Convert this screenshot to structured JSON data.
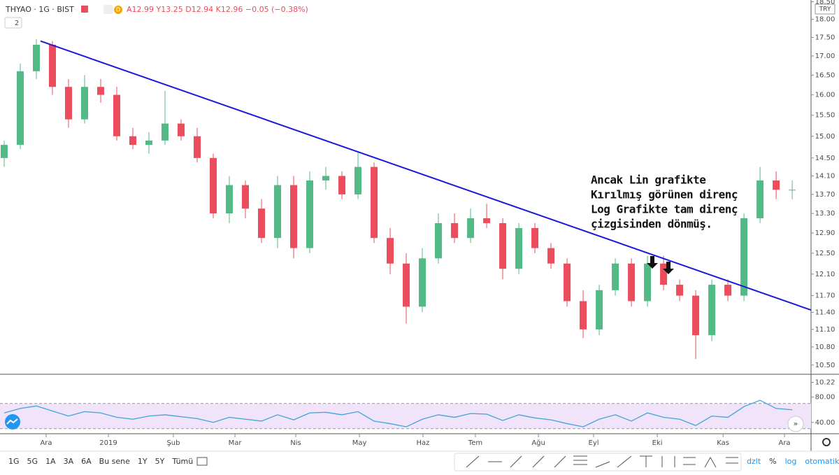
{
  "header": {
    "symbol": "THYAO · 1G · BIST",
    "badge": "D",
    "ohlc": "A12.99 Y13.25 D12.94 K12.96 −0.05 (−0.38%)",
    "indicator_count": "2",
    "currency": "TRY"
  },
  "chart_data": [
    {
      "type": "candlestick",
      "log_scale": true,
      "up_color": "#53b987",
      "down_color": "#eb4d5c",
      "xlim": [
        -0.26,
        50.17
      ],
      "xticks": [
        {
          "value": 2.61,
          "label": "Ara"
        },
        {
          "value": 6.48,
          "label": "2019"
        },
        {
          "value": 10.52,
          "label": "Şub"
        },
        {
          "value": 14.35,
          "label": "Mar"
        },
        {
          "value": 18.13,
          "label": "Nis"
        },
        {
          "value": 22.09,
          "label": "May"
        },
        {
          "value": 26.04,
          "label": "Haz"
        },
        {
          "value": 29.3,
          "label": "Tem"
        },
        {
          "value": 33.22,
          "label": "Ağu"
        },
        {
          "value": 36.65,
          "label": "Eyl"
        },
        {
          "value": 40.61,
          "label": "Eki"
        },
        {
          "value": 44.7,
          "label": "Kas"
        },
        {
          "value": 48.52,
          "label": "Ara"
        }
      ],
      "ylim": [
        10.35,
        18.55
      ],
      "yticks": [
        {
          "value": 18.5,
          "label": "18.50"
        },
        {
          "value": 18,
          "label": "18.00"
        },
        {
          "value": 17.5,
          "label": "17.50"
        },
        {
          "value": 17,
          "label": "17.00"
        },
        {
          "value": 16.5,
          "label": "16.50"
        },
        {
          "value": 16,
          "label": "16.00"
        },
        {
          "value": 15.5,
          "label": "15.50"
        },
        {
          "value": 15,
          "label": "15.00"
        },
        {
          "value": 14.5,
          "label": "14.50"
        },
        {
          "value": 14.1,
          "label": "14.10"
        },
        {
          "value": 13.7,
          "label": "13.70"
        },
        {
          "value": 13.3,
          "label": "13.30"
        },
        {
          "value": 12.9,
          "label": "12.90"
        },
        {
          "value": 12.5,
          "label": "12.50"
        },
        {
          "value": 12.1,
          "label": "12.10"
        },
        {
          "value": 11.7,
          "label": "11.70"
        },
        {
          "value": 11.4,
          "label": "11.40"
        },
        {
          "value": 11.1,
          "label": "11.10"
        },
        {
          "value": 10.8,
          "label": "10.80"
        },
        {
          "value": 10.5,
          "label": "10.50"
        },
        {
          "value": 10.22,
          "label": "10.22"
        }
      ],
      "open": [
        14.5,
        14.8,
        16.6,
        17.3,
        16.2,
        15.4,
        16.2,
        16.0,
        15.0,
        14.8,
        14.9,
        15.3,
        15.0,
        14.5,
        13.3,
        13.9,
        13.4,
        12.8,
        13.9,
        12.6,
        14.0,
        14.1,
        13.7,
        14.3,
        12.8,
        12.3,
        11.5,
        12.4,
        13.1,
        12.8,
        13.2,
        13.1,
        12.2,
        13.0,
        12.6,
        12.3,
        11.6,
        11.1,
        11.8,
        12.3,
        11.6,
        12.3,
        11.9,
        11.7,
        11.0,
        11.9,
        11.7,
        13.2,
        14.0,
        13.8
      ],
      "high": [
        14.9,
        16.8,
        17.45,
        17.4,
        16.4,
        16.5,
        16.4,
        16.2,
        15.2,
        15.1,
        16.1,
        15.4,
        15.2,
        14.6,
        14.1,
        14.0,
        13.6,
        14.1,
        14.1,
        14.2,
        14.3,
        14.2,
        14.65,
        14.4,
        13.0,
        12.5,
        12.6,
        13.3,
        13.3,
        13.4,
        13.5,
        13.2,
        13.1,
        13.1,
        12.7,
        12.4,
        11.8,
        11.9,
        12.4,
        12.4,
        12.45,
        12.45,
        12.0,
        11.8,
        12.0,
        12.0,
        13.3,
        14.3,
        14.2,
        14.0
      ],
      "low": [
        14.3,
        14.7,
        16.4,
        16.0,
        15.2,
        15.3,
        15.8,
        14.9,
        14.7,
        14.6,
        14.8,
        14.9,
        14.4,
        13.2,
        13.1,
        13.2,
        12.7,
        12.6,
        12.4,
        12.5,
        13.8,
        13.6,
        13.6,
        12.7,
        12.1,
        11.2,
        11.4,
        12.3,
        12.7,
        12.7,
        13.0,
        12.0,
        12.1,
        12.5,
        12.2,
        11.5,
        10.95,
        11.0,
        11.7,
        11.5,
        11.5,
        11.8,
        11.6,
        10.6,
        10.9,
        11.6,
        11.6,
        13.1,
        13.6,
        13.6
      ],
      "close": [
        14.8,
        16.6,
        17.3,
        16.2,
        15.4,
        16.2,
        16.0,
        15.0,
        14.8,
        14.9,
        15.3,
        15.0,
        14.5,
        13.3,
        13.9,
        13.4,
        12.8,
        13.9,
        12.6,
        14.0,
        14.1,
        13.7,
        14.3,
        12.8,
        12.3,
        11.5,
        12.4,
        13.1,
        12.8,
        13.2,
        13.1,
        12.2,
        13.0,
        12.6,
        12.3,
        11.6,
        11.1,
        11.8,
        12.3,
        11.6,
        12.3,
        11.9,
        11.7,
        11.0,
        11.9,
        11.7,
        13.2,
        14.0,
        13.8,
        13.8
      ],
      "trendline": {
        "x": [
          2.26,
          50.17
        ],
        "y": [
          17.4,
          11.44
        ],
        "color": "#1a1ad6"
      },
      "annotation": [
        "Ancak Lin grafikte",
        "Kırılmış görünen direnç",
        "Log Grafikte tam direnç",
        "çizgisinden dönmüş."
      ]
    },
    {
      "type": "line",
      "color": "#3ea6d8",
      "xlim": [
        -0.26,
        50.17
      ],
      "ylim": [
        22,
        114
      ],
      "yticks": [
        {
          "value": 80,
          "label": "80.00"
        },
        {
          "value": 40,
          "label": "40.00"
        }
      ],
      "band": [
        30,
        70
      ],
      "band_color": "#f1e3fa",
      "values": [
        55,
        62,
        66,
        58,
        50,
        57,
        55,
        48,
        45,
        50,
        52,
        49,
        46,
        40,
        48,
        45,
        42,
        52,
        44,
        55,
        56,
        52,
        57,
        42,
        38,
        33,
        45,
        52,
        48,
        54,
        53,
        43,
        52,
        47,
        44,
        38,
        33,
        45,
        52,
        42,
        55,
        48,
        45,
        35,
        50,
        48,
        65,
        75,
        62,
        60
      ]
    }
  ],
  "toolbar": {
    "ranges": [
      "1G",
      "5G",
      "1A",
      "3A",
      "6A",
      "Bu sene",
      "1Y",
      "5Y",
      "Tümü"
    ],
    "options": [
      "dzlt",
      "%",
      "log",
      "otomatik"
    ]
  }
}
